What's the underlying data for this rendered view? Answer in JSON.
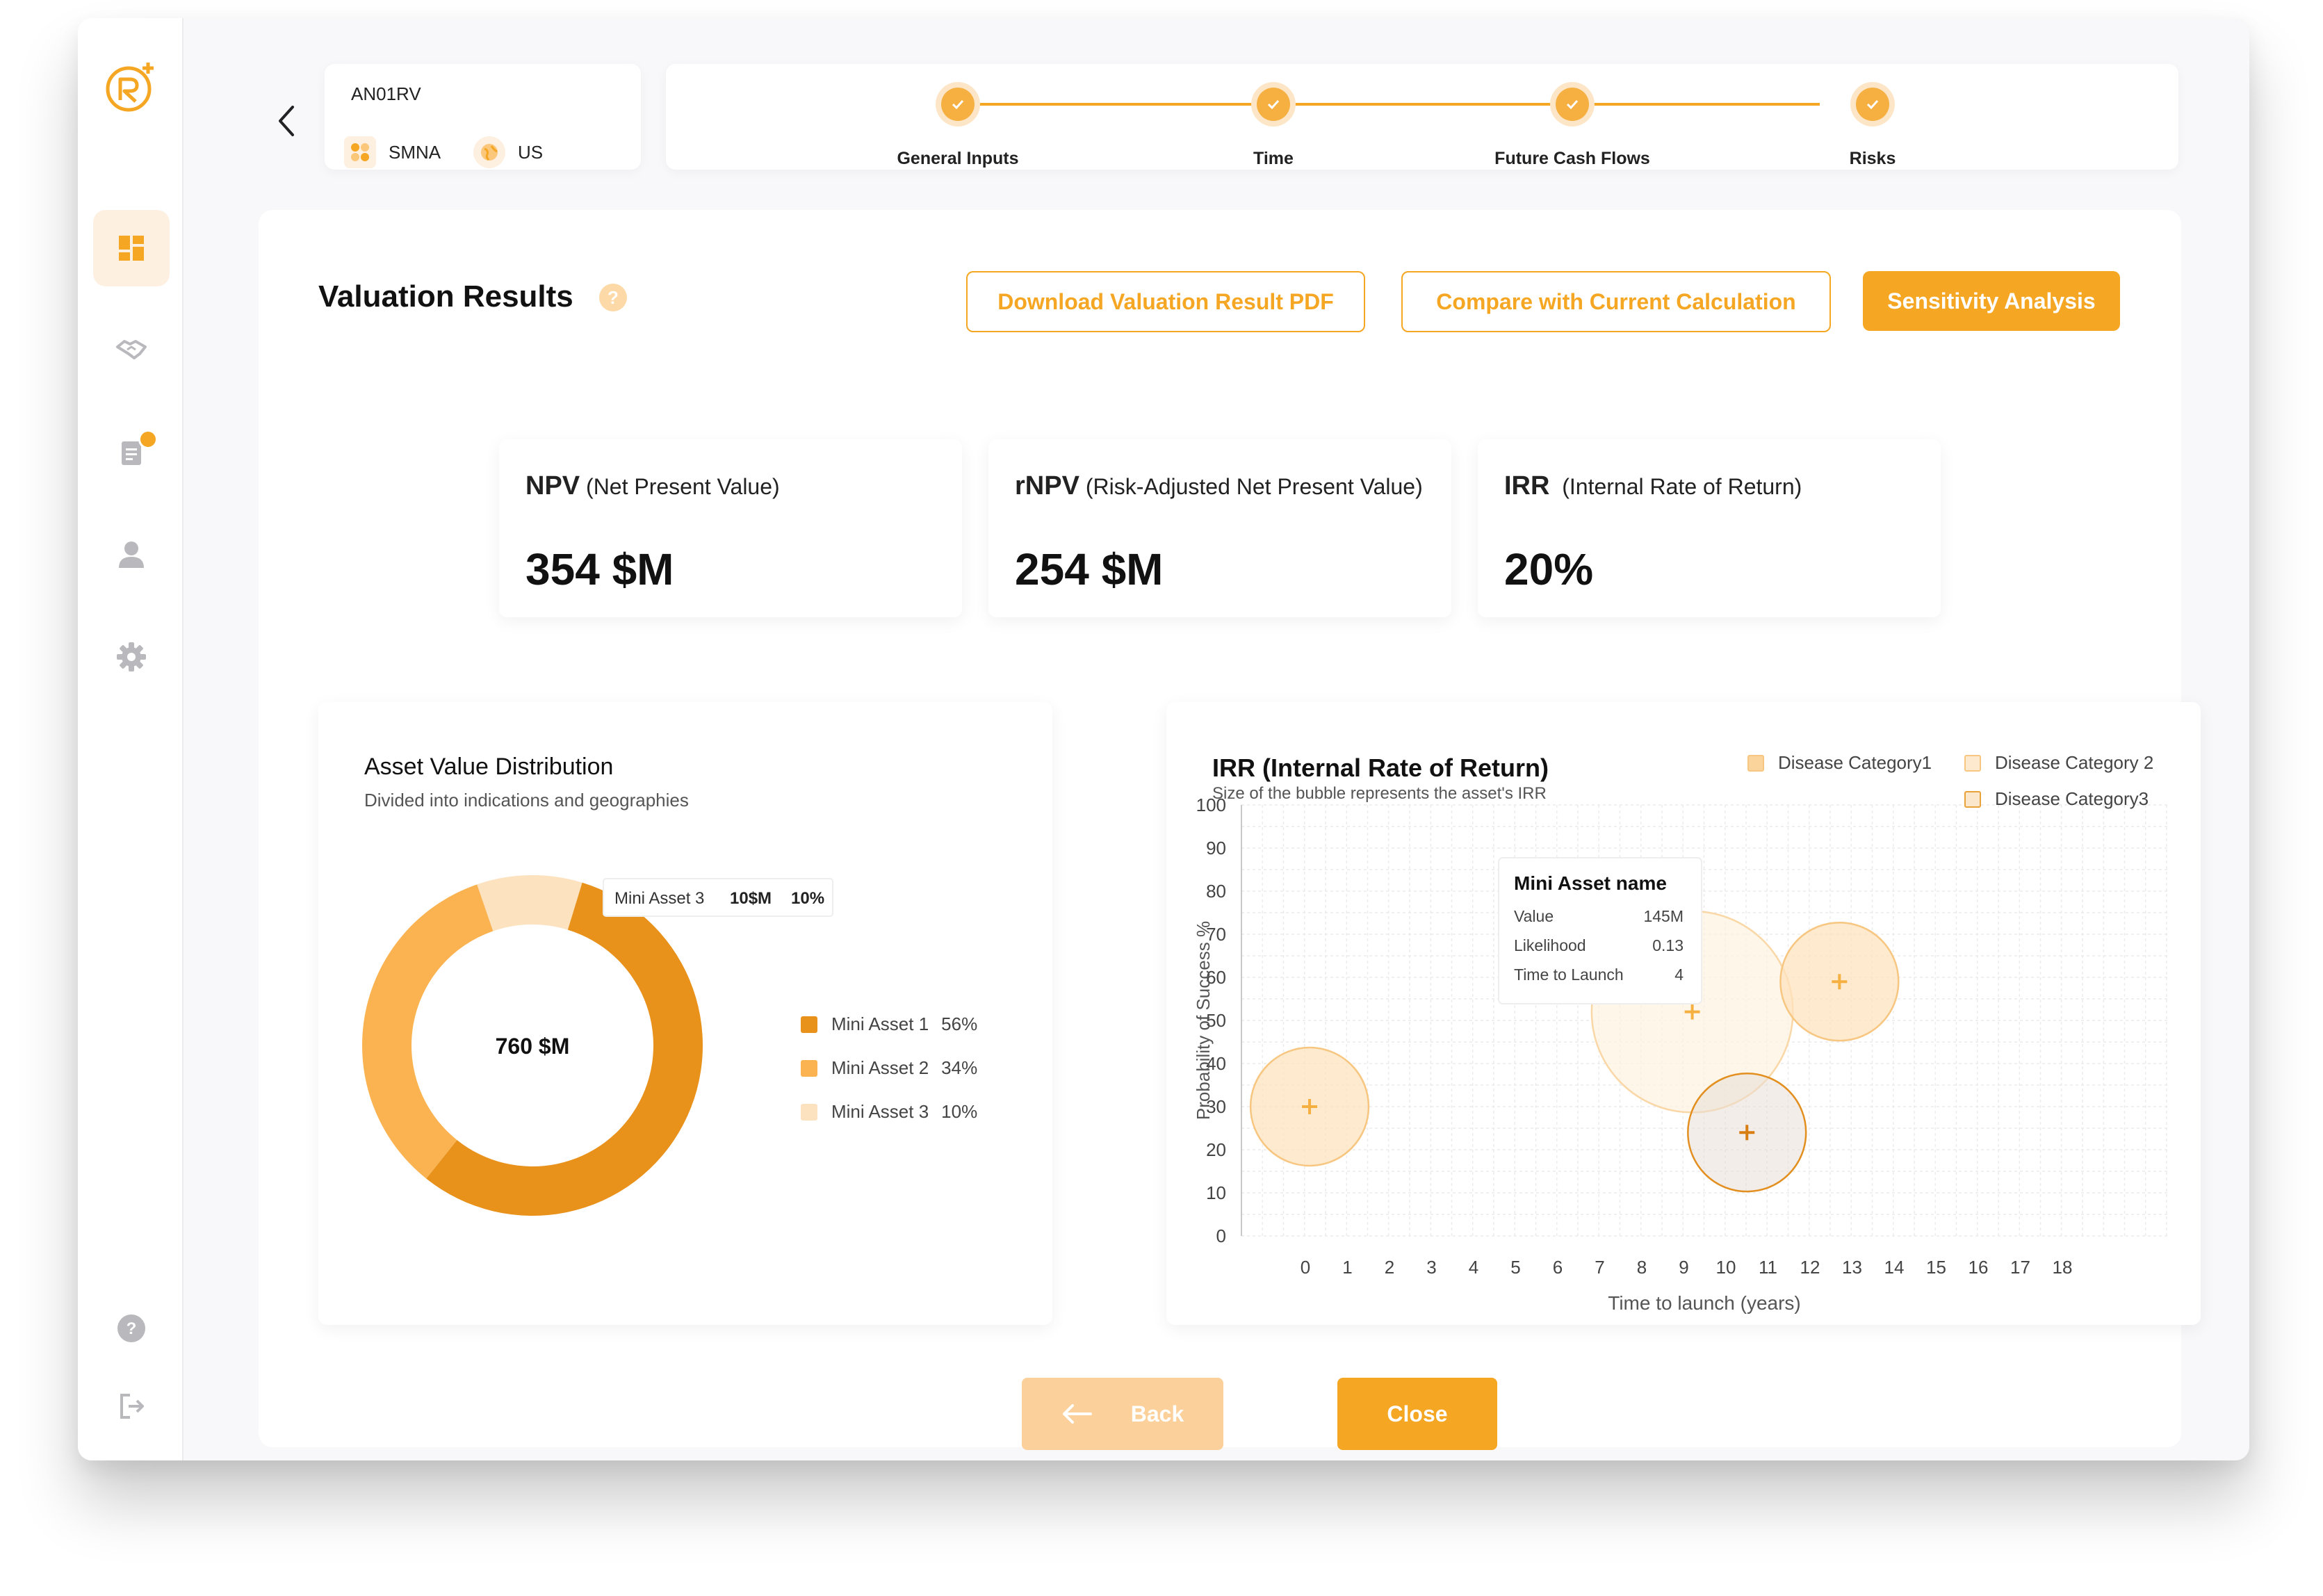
{
  "asset": {
    "id": "AN01RV",
    "company": "SMNA",
    "region": "US"
  },
  "steps": [
    {
      "label": "General Inputs"
    },
    {
      "label": "Time"
    },
    {
      "label": "Future Cash Flows"
    },
    {
      "label": "Risks"
    }
  ],
  "page": {
    "title": "Valuation Results",
    "help": "?",
    "actions": {
      "download": "Download Valuation Result PDF",
      "compare": "Compare with Current Calculation",
      "sensitivity": "Sensitivity Analysis"
    }
  },
  "metrics": [
    {
      "abbr": "NPV",
      "full": "(Net Present Value)",
      "value": "354 $M"
    },
    {
      "abbr": "rNPV",
      "full": "(Risk-Adjusted Net Present Value)",
      "value": "254 $M"
    },
    {
      "abbr": "IRR",
      "full": "(Internal Rate of Return)",
      "value": "20%"
    }
  ],
  "donut_panel": {
    "title": "Asset Value Distribution",
    "subtitle": "Divided into indications and geographies",
    "center": "760 $M",
    "tooltip": {
      "name": "Mini Asset 3",
      "value": "10$M",
      "pct": "10%"
    },
    "legend": [
      {
        "name": "Mini Asset 1",
        "pct": "56%",
        "color": "#e8921c"
      },
      {
        "name": "Mini Asset 2",
        "pct": "34%",
        "color": "#fbb351"
      },
      {
        "name": "Mini Asset 3",
        "pct": "10%",
        "color": "#fde2bf"
      }
    ]
  },
  "bubble_panel": {
    "title": "IRR (Internal Rate of Return)",
    "subtitle": "Size of the bubble represents the asset's IRR",
    "legend": [
      {
        "name": "Disease Category1",
        "color": "#fbd49c"
      },
      {
        "name": "Disease Category 2",
        "color": "#fde9cd"
      },
      {
        "name": "Disease Category3",
        "color": "#e8a23a"
      }
    ],
    "tooltip": {
      "title": "Mini Asset name",
      "rows": [
        {
          "k": "Value",
          "v": "145M"
        },
        {
          "k": "Likelihood",
          "v": "0.13"
        },
        {
          "k": "Time to Launch",
          "v": "4"
        }
      ]
    }
  },
  "chart_data": [
    {
      "type": "pie",
      "title": "Asset Value Distribution",
      "categories": [
        "Mini Asset 1",
        "Mini Asset 2",
        "Mini Asset 3"
      ],
      "values": [
        56,
        34,
        10
      ],
      "colors": [
        "#e8921c",
        "#fbb351",
        "#fde2bf"
      ]
    },
    {
      "type": "scatter",
      "title": "IRR (Internal Rate of Return)",
      "xlabel": "Time to launch (years)",
      "ylabel": "Probability of Success %",
      "xlim": [
        0,
        18
      ],
      "ylim": [
        0,
        100
      ],
      "xticks": [
        0,
        1,
        2,
        3,
        4,
        5,
        6,
        7,
        8,
        9,
        10,
        11,
        12,
        13,
        14,
        15,
        16,
        17,
        18
      ],
      "yticks": [
        0,
        10,
        20,
        30,
        40,
        50,
        60,
        70,
        80,
        90,
        100
      ],
      "grid": true,
      "series": [
        {
          "name": "Disease Category1",
          "points": [
            {
              "x": 0.1,
              "y": 30,
              "r": 2.7
            },
            {
              "x": 12.7,
              "y": 59,
              "r": 2.7
            }
          ]
        },
        {
          "name": "Disease Category 2",
          "points": [
            {
              "x": 9.2,
              "y": 52,
              "r": 4.6
            }
          ]
        },
        {
          "name": "Disease Category3",
          "points": [
            {
              "x": 10.5,
              "y": 24,
              "r": 2.7
            }
          ]
        }
      ]
    }
  ],
  "footer": {
    "back": "Back",
    "close": "Close"
  }
}
